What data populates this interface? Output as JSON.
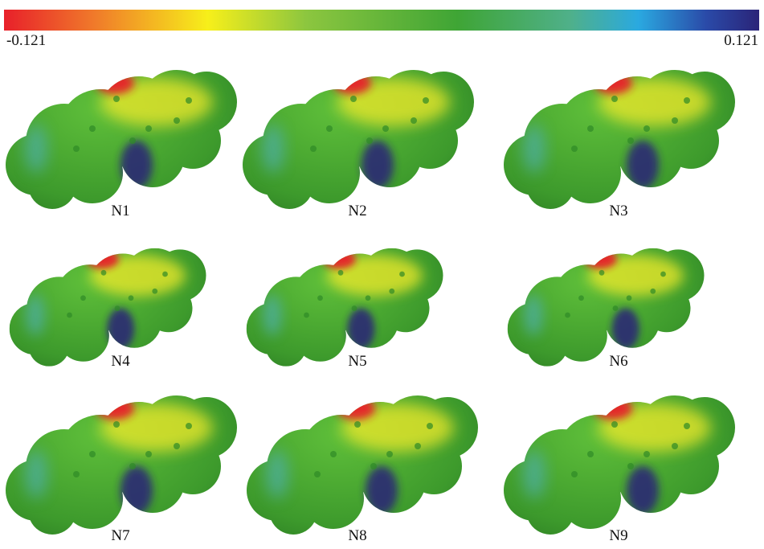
{
  "colorbar": {
    "min": -0.121,
    "max": 0.121
  },
  "panels": [
    {
      "label": "N1"
    },
    {
      "label": "N2"
    },
    {
      "label": "N3"
    },
    {
      "label": "N4"
    },
    {
      "label": "N5"
    },
    {
      "label": "N6"
    },
    {
      "label": "N7"
    },
    {
      "label": "N8"
    },
    {
      "label": "N9"
    }
  ]
}
